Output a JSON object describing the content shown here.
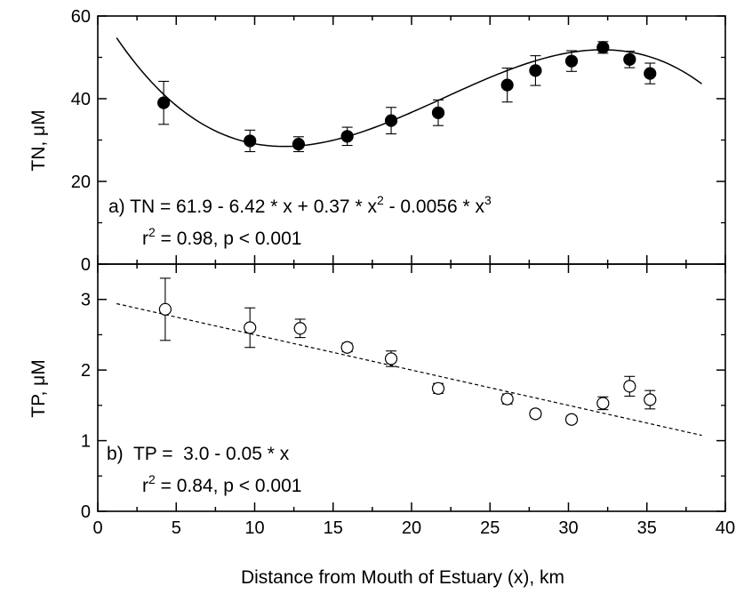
{
  "chart_data": [
    {
      "type": "scatter",
      "panel": "top",
      "ylabel": "TN, μM",
      "xlim": [
        0,
        40
      ],
      "ylim": [
        0,
        60
      ],
      "yticks": [
        0,
        20,
        40,
        60
      ],
      "marker": "filled-circle",
      "colors": {
        "marker": "#000000",
        "fit": "#000000"
      },
      "fit_line_style": "solid",
      "fit_coefficients": [
        61.9,
        -6.42,
        0.37,
        -0.0056
      ],
      "fit_x_range": [
        1.2,
        38.5
      ],
      "annotation": {
        "line1": "a)  TN = 61.9 - 6.42 * x + 0.37 * x",
        "sup1": "2",
        "line1b": " - 0.0056 * x",
        "sup2": "3",
        "line2a": "r",
        "line2sup": "2",
        "line2b": " = 0.98, p < 0.001"
      },
      "points": [
        {
          "x": 4.2,
          "y": 39.0,
          "err": 5.2
        },
        {
          "x": 9.7,
          "y": 29.8,
          "err": 2.6
        },
        {
          "x": 12.8,
          "y": 29.0,
          "err": 1.8
        },
        {
          "x": 15.9,
          "y": 30.9,
          "err": 2.2
        },
        {
          "x": 18.7,
          "y": 34.7,
          "err": 3.2
        },
        {
          "x": 21.7,
          "y": 36.6,
          "err": 3.1
        },
        {
          "x": 26.1,
          "y": 43.3,
          "err": 4.1
        },
        {
          "x": 27.9,
          "y": 46.8,
          "err": 3.6
        },
        {
          "x": 30.2,
          "y": 49.1,
          "err": 2.5
        },
        {
          "x": 32.2,
          "y": 52.4,
          "err": 1.4
        },
        {
          "x": 33.9,
          "y": 49.5,
          "err": 2.0
        },
        {
          "x": 35.2,
          "y": 46.1,
          "err": 2.5
        }
      ]
    },
    {
      "type": "scatter",
      "panel": "bottom",
      "xlabel": "Distance from Mouth of Estuary (x), km",
      "ylabel": "TP, μM",
      "xlim": [
        0,
        40
      ],
      "ylim": [
        0,
        3.5
      ],
      "xticks": [
        0,
        5,
        10,
        15,
        20,
        25,
        30,
        35,
        40
      ],
      "yticks": [
        0,
        1,
        2,
        3
      ],
      "marker": "open-circle",
      "colors": {
        "marker": "#000000",
        "fit": "#000000"
      },
      "fit_line_style": "dashed",
      "fit_coefficients": [
        3.0,
        -0.05
      ],
      "fit_x_range": [
        1.2,
        38.5
      ],
      "annotation": {
        "line1": "b)  TP =  3.0 - 0.05 * x",
        "line2a": "r",
        "line2sup": "2",
        "line2b": " = 0.84, p < 0.001"
      },
      "points": [
        {
          "x": 4.3,
          "y": 2.86,
          "err": 0.44
        },
        {
          "x": 9.7,
          "y": 2.6,
          "err": 0.28
        },
        {
          "x": 12.9,
          "y": 2.59,
          "err": 0.13
        },
        {
          "x": 15.9,
          "y": 2.32,
          "err": 0.06
        },
        {
          "x": 18.7,
          "y": 2.16,
          "err": 0.11
        },
        {
          "x": 21.7,
          "y": 1.74,
          "err": 0.07
        },
        {
          "x": 26.1,
          "y": 1.59,
          "err": 0.07
        },
        {
          "x": 27.9,
          "y": 1.38,
          "err": 0.05
        },
        {
          "x": 30.2,
          "y": 1.3,
          "err": 0.05
        },
        {
          "x": 32.2,
          "y": 1.53,
          "err": 0.09
        },
        {
          "x": 33.9,
          "y": 1.77,
          "err": 0.14
        },
        {
          "x": 35.2,
          "y": 1.58,
          "err": 0.13
        }
      ]
    }
  ]
}
